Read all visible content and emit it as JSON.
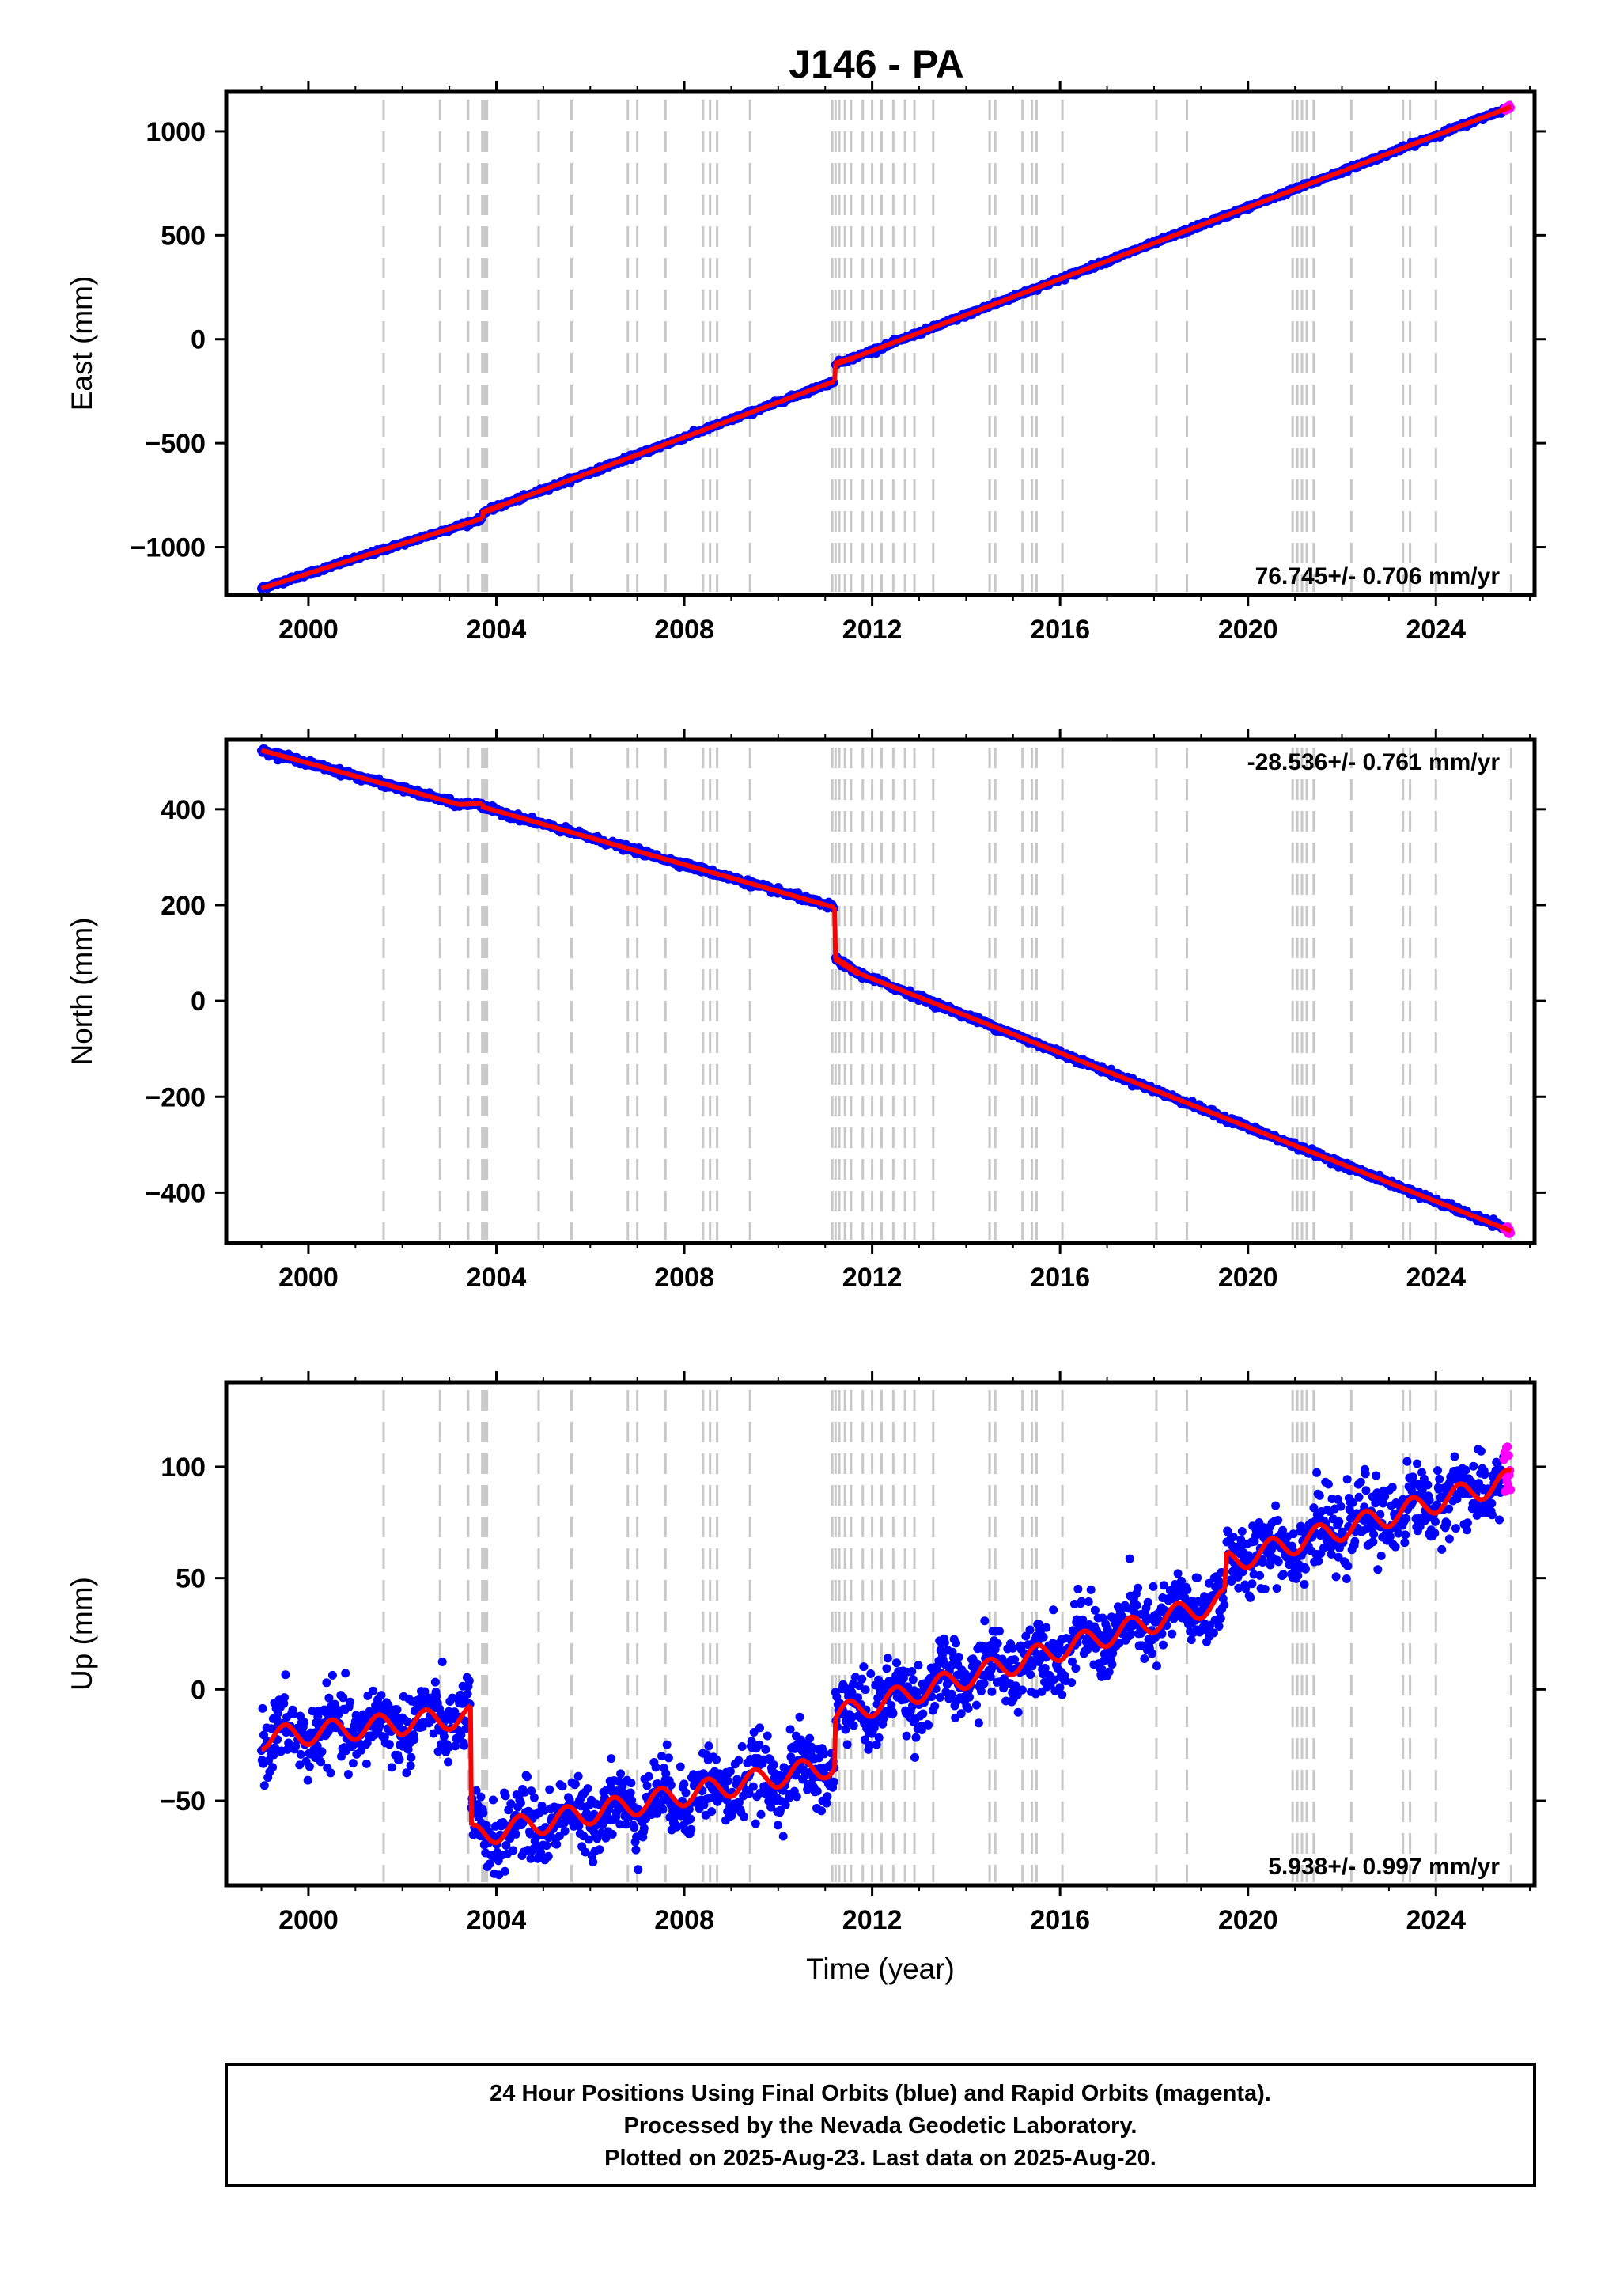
{
  "title": "J146 - PA",
  "colors": {
    "final": "#0000ff",
    "rapid": "#ff00ff",
    "model": "#ff0000",
    "events": "#c8c8c8",
    "frame": "#000000"
  },
  "chart_data": [
    {
      "type": "scatter",
      "name": "East",
      "ylabel": "East (mm)",
      "xlim": [
        1998.25,
        2026.1
      ],
      "ylim": [
        -1230,
        1190
      ],
      "xticks": [
        2000,
        2004,
        2008,
        2012,
        2016,
        2020,
        2024
      ],
      "xtick_labels": [
        "2000",
        "2004",
        "2008",
        "2012",
        "2016",
        "2020",
        "2024"
      ],
      "yticks": [
        1000,
        500,
        0,
        -500,
        -1000
      ],
      "ytick_labels": [
        "1000",
        "500",
        "0",
        "−500",
        "−1000"
      ],
      "rate_text": "76.745+/- 0.706 mm/yr",
      "rate_position": "bottom-right",
      "noise": 5,
      "segments": [
        {
          "x": [
            1999.0,
            2003.7
          ],
          "y": [
            -1198,
            -862
          ]
        },
        {
          "x": [
            2003.72,
            2004.1
          ],
          "y": [
            -832,
            -800
          ]
        },
        {
          "x": [
            2004.1,
            2011.2
          ],
          "y": [
            -800,
            -202
          ]
        },
        {
          "x": [
            2011.22,
            2011.6
          ],
          "y": [
            -117,
            -90
          ]
        },
        {
          "x": [
            2011.6,
            2025.6
          ],
          "y": [
            -90,
            1118
          ]
        }
      ],
      "rapid_range": [
        2025.45,
        2025.63
      ]
    },
    {
      "type": "scatter",
      "name": "North",
      "ylabel": "North (mm)",
      "xlim": [
        1998.25,
        2026.1
      ],
      "ylim": [
        -505,
        545
      ],
      "xticks": [
        2000,
        2004,
        2008,
        2012,
        2016,
        2020,
        2024
      ],
      "xtick_labels": [
        "2000",
        "2004",
        "2008",
        "2012",
        "2016",
        "2020",
        "2024"
      ],
      "yticks": [
        400,
        200,
        0,
        -200,
        -400
      ],
      "ytick_labels": [
        "400",
        "200",
        "0",
        "−200",
        "−400"
      ],
      "rate_text": "-28.536+/- 0.761 mm/yr",
      "rate_position": "top-right",
      "noise": 3,
      "segments": [
        {
          "x": [
            1999.0,
            2003.2
          ],
          "y": [
            523,
            410
          ]
        },
        {
          "x": [
            2003.2,
            2003.7
          ],
          "y": [
            410,
            412
          ]
        },
        {
          "x": [
            2003.7,
            2011.2
          ],
          "y": [
            405,
            195
          ]
        },
        {
          "x": [
            2011.22,
            2011.7
          ],
          "y": [
            88,
            58
          ]
        },
        {
          "x": [
            2011.7,
            2025.6
          ],
          "y": [
            58,
            -480
          ]
        }
      ],
      "rapid_range": [
        2025.45,
        2025.63
      ]
    },
    {
      "type": "scatter",
      "name": "Up",
      "ylabel": "Up (mm)",
      "xlabel": "Time (year)",
      "xlim": [
        1998.25,
        2026.1
      ],
      "ylim": [
        -88,
        138
      ],
      "xticks": [
        2000,
        2004,
        2008,
        2012,
        2016,
        2020,
        2024
      ],
      "xtick_labels": [
        "2000",
        "2004",
        "2008",
        "2012",
        "2016",
        "2020",
        "2024"
      ],
      "yticks": [
        100,
        50,
        0,
        -50
      ],
      "ytick_labels": [
        "100",
        "50",
        "0",
        "−50"
      ],
      "rate_text": "5.938+/- 0.997 mm/yr",
      "rate_position": "bottom-right",
      "noise": 8,
      "seasonal_amplitude": 5,
      "segments": [
        {
          "x": [
            1999.0,
            2003.45
          ],
          "y": [
            -22,
            -12
          ]
        },
        {
          "x": [
            2003.47,
            2011.2
          ],
          "y": [
            -66,
            -34
          ]
        },
        {
          "x": [
            2011.22,
            2019.5
          ],
          "y": [
            -12,
            40
          ]
        },
        {
          "x": [
            2019.55,
            2025.6
          ],
          "y": [
            57,
            94
          ]
        }
      ],
      "rapid_range": [
        2025.45,
        2025.63
      ]
    }
  ],
  "event_lines": [
    2001.6,
    2002.8,
    2003.4,
    2003.7,
    2003.75,
    2003.8,
    2004.9,
    2005.6,
    2006.8,
    2007.0,
    2007.6,
    2008.4,
    2008.55,
    2008.7,
    2009.4,
    2011.15,
    2011.22,
    2011.3,
    2011.42,
    2011.55,
    2011.8,
    2012.0,
    2012.2,
    2012.45,
    2012.7,
    2012.9,
    2013.3,
    2014.5,
    2014.62,
    2015.2,
    2015.4,
    2015.5,
    2016.05,
    2018.05,
    2018.7,
    2020.95,
    2021.05,
    2021.15,
    2021.25,
    2021.4,
    2022.2,
    2023.3,
    2023.45,
    2024.0,
    2025.6
  ],
  "footer": {
    "line1": "24 Hour Positions Using Final Orbits (blue) and Rapid Orbits (magenta).",
    "line2": "Processed by the Nevada Geodetic Laboratory.",
    "line3": "Plotted on 2025-Aug-23. Last data on 2025-Aug-20."
  }
}
